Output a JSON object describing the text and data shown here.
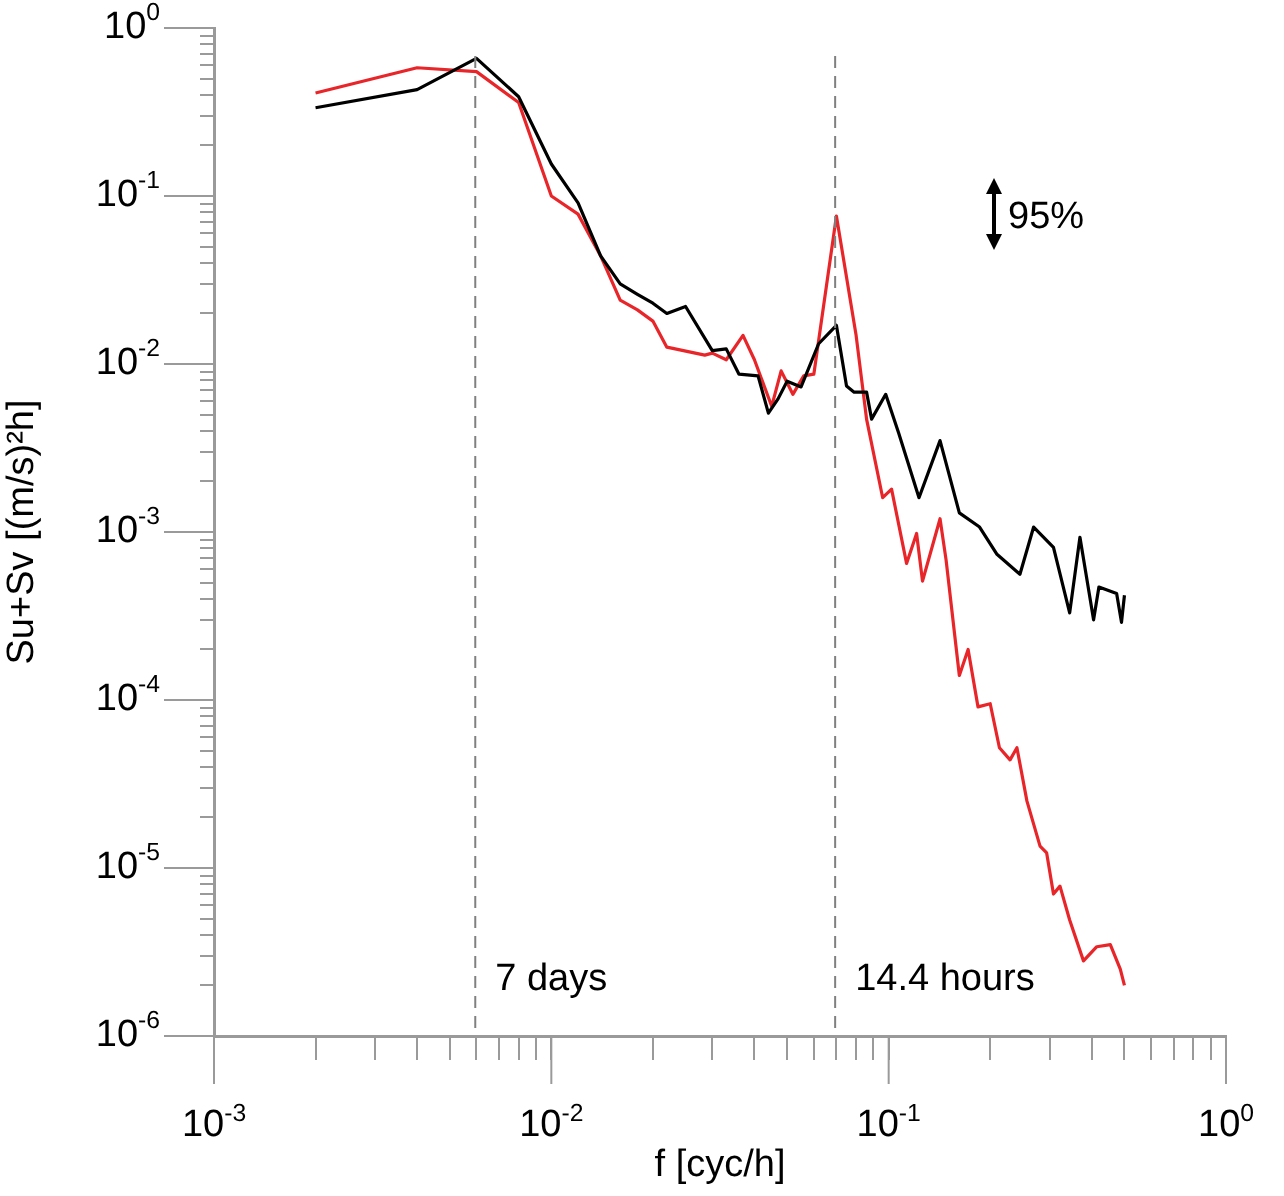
{
  "chart_data": {
    "type": "line",
    "xlabel": "f [cyc/h]",
    "ylabel": "Su+Sv [(m/s)²h]",
    "log": "xy",
    "grid": false,
    "legend": false,
    "marker": "none",
    "line_style": "solid",
    "xlim": [
      0.001,
      1
    ],
    "ylim": [
      1e-06,
      1
    ],
    "xticks": [
      {
        "value": 0.001,
        "label": "10$^{-3}$"
      },
      {
        "value": 0.002,
        "label": null
      },
      {
        "value": 0.003,
        "label": null
      },
      {
        "value": 0.004,
        "label": null
      },
      {
        "value": 0.005,
        "label": null
      },
      {
        "value": 0.006,
        "label": null
      },
      {
        "value": 0.007,
        "label": null
      },
      {
        "value": 0.008,
        "label": null
      },
      {
        "value": 0.009,
        "label": null
      },
      {
        "value": 0.01,
        "label": "10$^{-2}$"
      },
      {
        "value": 0.02,
        "label": null
      },
      {
        "value": 0.03,
        "label": null
      },
      {
        "value": 0.04,
        "label": null
      },
      {
        "value": 0.05,
        "label": null
      },
      {
        "value": 0.06,
        "label": null
      },
      {
        "value": 0.07,
        "label": null
      },
      {
        "value": 0.08,
        "label": null
      },
      {
        "value": 0.09,
        "label": null
      },
      {
        "value": 0.1,
        "label": "10$^{-1}$"
      },
      {
        "value": 0.2,
        "label": null
      },
      {
        "value": 0.3,
        "label": null
      },
      {
        "value": 0.4,
        "label": null
      },
      {
        "value": 0.5,
        "label": null
      },
      {
        "value": 0.6,
        "label": null
      },
      {
        "value": 0.7,
        "label": null
      },
      {
        "value": 0.8,
        "label": null
      },
      {
        "value": 0.9,
        "label": null
      },
      {
        "value": 1,
        "label": "10$^{0}$"
      }
    ],
    "yticks": [
      {
        "value": 1e-06,
        "label": "10$^{-6}$"
      },
      {
        "value": 2e-06,
        "label": null
      },
      {
        "value": 3e-06,
        "label": null
      },
      {
        "value": 4e-06,
        "label": null
      },
      {
        "value": 5e-06,
        "label": null
      },
      {
        "value": 6e-06,
        "label": null
      },
      {
        "value": 7e-06,
        "label": null
      },
      {
        "value": 8e-06,
        "label": null
      },
      {
        "value": 9e-06,
        "label": null
      },
      {
        "value": 1e-05,
        "label": "10$^{-5}$"
      },
      {
        "value": 2e-05,
        "label": null
      },
      {
        "value": 3e-05,
        "label": null
      },
      {
        "value": 4e-05,
        "label": null
      },
      {
        "value": 5e-05,
        "label": null
      },
      {
        "value": 6e-05,
        "label": null
      },
      {
        "value": 7e-05,
        "label": null
      },
      {
        "value": 8e-05,
        "label": null
      },
      {
        "value": 9e-05,
        "label": null
      },
      {
        "value": 0.0001,
        "label": "10$^{-4}$"
      },
      {
        "value": 0.0002,
        "label": null
      },
      {
        "value": 0.0003,
        "label": null
      },
      {
        "value": 0.0004,
        "label": null
      },
      {
        "value": 0.0005,
        "label": null
      },
      {
        "value": 0.0006,
        "label": null
      },
      {
        "value": 0.0007,
        "label": null
      },
      {
        "value": 0.0008,
        "label": null
      },
      {
        "value": 0.0009,
        "label": null
      },
      {
        "value": 0.001,
        "label": "10$^{-3}$"
      },
      {
        "value": 0.002,
        "label": null
      },
      {
        "value": 0.003,
        "label": null
      },
      {
        "value": 0.004,
        "label": null
      },
      {
        "value": 0.005,
        "label": null
      },
      {
        "value": 0.006,
        "label": null
      },
      {
        "value": 0.007,
        "label": null
      },
      {
        "value": 0.008,
        "label": null
      },
      {
        "value": 0.009,
        "label": null
      },
      {
        "value": 0.01,
        "label": "10$^{-2}$"
      },
      {
        "value": 0.02,
        "label": null
      },
      {
        "value": 0.03,
        "label": null
      },
      {
        "value": 0.04,
        "label": null
      },
      {
        "value": 0.05,
        "label": null
      },
      {
        "value": 0.06,
        "label": null
      },
      {
        "value": 0.07,
        "label": null
      },
      {
        "value": 0.08,
        "label": null
      },
      {
        "value": 0.09,
        "label": null
      },
      {
        "value": 0.1,
        "label": "10$^{-1}$"
      },
      {
        "value": 0.2,
        "label": null
      },
      {
        "value": 0.3,
        "label": null
      },
      {
        "value": 0.4,
        "label": null
      },
      {
        "value": 0.5,
        "label": null
      },
      {
        "value": 0.6,
        "label": null
      },
      {
        "value": 0.7,
        "label": null
      },
      {
        "value": 0.8,
        "label": null
      },
      {
        "value": 0.9,
        "label": null
      },
      {
        "value": 1,
        "label": "10$^{0}$"
      }
    ],
    "ref_lines": [
      {
        "axis": "x",
        "value": 0.00595,
        "label": "7 days",
        "color": "#808080",
        "line_style": "dashed"
      },
      {
        "axis": "x",
        "value": 0.0694,
        "label": "14.4 hours",
        "color": "#808080",
        "line_style": "dashed"
      }
    ],
    "annotations": [
      "95%"
    ],
    "series": [
      {
        "color": "#000000",
        "x": [
          0.002,
          0.004,
          0.006,
          0.008,
          0.01,
          0.012,
          0.014,
          0.016,
          0.018,
          0.02,
          0.022,
          0.025,
          0.03,
          0.033,
          0.036,
          0.041,
          0.044,
          0.047,
          0.05,
          0.055,
          0.062,
          0.07,
          0.075,
          0.079,
          0.086,
          0.089,
          0.098,
          0.107,
          0.123,
          0.142,
          0.162,
          0.186,
          0.209,
          0.245,
          0.269,
          0.308,
          0.344,
          0.369,
          0.405,
          0.42,
          0.474,
          0.49,
          0.5
        ],
        "values": [
          0.335,
          0.43,
          0.66,
          0.39,
          0.155,
          0.091,
          0.044,
          0.03,
          0.026,
          0.023,
          0.02,
          0.022,
          0.012,
          0.0123,
          0.0087,
          0.0085,
          0.0051,
          0.0062,
          0.0079,
          0.0073,
          0.0132,
          0.017,
          0.0074,
          0.0068,
          0.0068,
          0.0047,
          0.0066,
          0.0039,
          0.0016,
          0.0035,
          0.0013,
          0.00107,
          0.00074,
          0.00056,
          0.00107,
          0.00081,
          0.00033,
          0.00093,
          0.0003,
          0.00047,
          0.00043,
          0.00029,
          0.00042
        ]
      },
      {
        "color": "#e8262a",
        "x": [
          0.002,
          0.004,
          0.006,
          0.008,
          0.01,
          0.012,
          0.014,
          0.016,
          0.018,
          0.02,
          0.022,
          0.0285,
          0.03,
          0.033,
          0.037,
          0.04,
          0.045,
          0.048,
          0.052,
          0.056,
          0.06,
          0.07,
          0.08,
          0.086,
          0.096,
          0.102,
          0.113,
          0.121,
          0.126,
          0.142,
          0.148,
          0.162,
          0.172,
          0.184,
          0.2,
          0.213,
          0.229,
          0.24,
          0.257,
          0.281,
          0.294,
          0.308,
          0.322,
          0.344,
          0.378,
          0.414,
          0.454,
          0.486,
          0.5
        ],
        "values": [
          0.41,
          0.58,
          0.55,
          0.36,
          0.1,
          0.078,
          0.044,
          0.024,
          0.021,
          0.018,
          0.0126,
          0.0113,
          0.0116,
          0.0106,
          0.0148,
          0.0106,
          0.0056,
          0.0091,
          0.0066,
          0.0085,
          0.0087,
          0.076,
          0.015,
          0.0047,
          0.0016,
          0.0018,
          0.00065,
          0.00098,
          0.00051,
          0.0012,
          0.00068,
          0.00014,
          0.0002,
          9.1e-05,
          9.5e-05,
          5.2e-05,
          4.4e-05,
          5.2e-05,
          2.5e-05,
          1.35e-05,
          1.23e-05,
          7e-06,
          7.8e-06,
          4.9e-06,
          2.8e-06,
          3.4e-06,
          3.5e-06,
          2.5e-06,
          2e-06
        ]
      }
    ]
  }
}
